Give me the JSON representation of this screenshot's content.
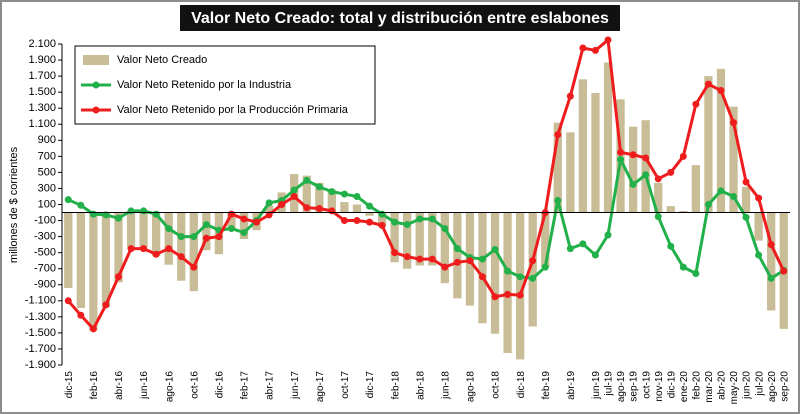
{
  "chart_data": {
    "type": "bar_line",
    "title": "Valor Neto Creado: total y distribución entre eslabones",
    "y_label": "millones de $ corrientes",
    "categories": [
      "dic-15",
      null,
      "feb-16",
      null,
      "abr-16",
      null,
      "jun-16",
      null,
      "ago-16",
      null,
      "oct-16",
      null,
      "dic-16",
      null,
      "feb-17",
      null,
      "abr-17",
      null,
      "jun-17",
      null,
      "ago-17",
      null,
      "oct-17",
      null,
      "dic-17",
      null,
      "feb-18",
      null,
      "abr-18",
      null,
      "jun-18",
      null,
      "ago-18",
      null,
      "oct-18",
      null,
      "dic-18",
      null,
      "feb-19",
      null,
      "abr-19",
      null,
      "jun-19",
      "jul-19",
      "ago-19",
      "sep-19",
      "oct-19",
      "nov-19",
      "dic-19",
      "ene-20",
      "feb-20",
      "mar-20",
      "abr-20",
      "may-20",
      "jun-20",
      "jul-20",
      "ago-20",
      "sep-20"
    ],
    "series": [
      {
        "name": "Valor Neto Creado",
        "kind": "bar",
        "color": "#c9bd97",
        "values": [
          -940,
          -1190,
          -1470,
          -1180,
          -870,
          -430,
          -430,
          -540,
          -650,
          -850,
          -980,
          -470,
          -520,
          -220,
          -330,
          -220,
          90,
          250,
          480,
          460,
          370,
          280,
          130,
          100,
          -40,
          -180,
          -620,
          -700,
          -660,
          -660,
          -880,
          -1070,
          -1160,
          -1380,
          -1510,
          -1750,
          -1830,
          -1420,
          -680,
          1120,
          1000,
          1660,
          1490,
          1870,
          1410,
          1070,
          1150,
          370,
          80,
          20,
          590,
          1700,
          1790,
          1320,
          320,
          -350,
          -1220,
          -1450
        ]
      },
      {
        "name": "Valor Neto Retenido por la Industria",
        "kind": "line",
        "color": "#22b04a",
        "values": [
          160,
          90,
          -20,
          -30,
          -70,
          20,
          20,
          -20,
          -200,
          -300,
          -300,
          -150,
          -220,
          -200,
          -250,
          -100,
          120,
          150,
          280,
          400,
          320,
          260,
          230,
          200,
          80,
          -20,
          -120,
          -150,
          -80,
          -80,
          -200,
          -450,
          -560,
          -580,
          -460,
          -730,
          -800,
          -820,
          -680,
          150,
          -450,
          -390,
          -530,
          -280,
          660,
          350,
          470,
          -50,
          -420,
          -680,
          -760,
          100,
          270,
          200,
          -60,
          -530,
          -820,
          -720
        ]
      },
      {
        "name": "Valor Neto Retenido por la Producción Primaria",
        "kind": "line",
        "color": "#ee1c1c",
        "values": [
          -1100,
          -1280,
          -1450,
          -1150,
          -800,
          -450,
          -450,
          -520,
          -450,
          -550,
          -680,
          -320,
          -300,
          -20,
          -80,
          -120,
          -30,
          100,
          200,
          60,
          50,
          20,
          -100,
          -100,
          -120,
          -160,
          -500,
          -550,
          -580,
          -580,
          -680,
          -620,
          -600,
          -800,
          -1050,
          -1020,
          -1030,
          -600,
          0,
          970,
          1450,
          2050,
          2020,
          2150,
          750,
          720,
          680,
          420,
          500,
          700,
          1350,
          1600,
          1520,
          1120,
          380,
          180,
          -400,
          -730
        ]
      }
    ],
    "ylim": [
      -1900,
      2100
    ],
    "yticks": [
      {
        "value": -1900,
        "label": "-1.900"
      },
      {
        "value": -1700,
        "label": "-1.700"
      },
      {
        "value": -1500,
        "label": "-1.500"
      },
      {
        "value": -1300,
        "label": "-1.300"
      },
      {
        "value": -1100,
        "label": "-1.100"
      },
      -900,
      -700,
      -500,
      -300,
      -100,
      100,
      300,
      500,
      700,
      900,
      {
        "value": 1100,
        "label": "1.100"
      },
      {
        "value": 1300,
        "label": "1.300"
      },
      {
        "value": 1500,
        "label": "1.500"
      },
      {
        "value": 1700,
        "label": "1.700"
      },
      {
        "value": 1900,
        "label": "1.900"
      },
      {
        "value": 2100,
        "label": "2.100"
      }
    ],
    "grid": false,
    "legend": "top-left"
  }
}
